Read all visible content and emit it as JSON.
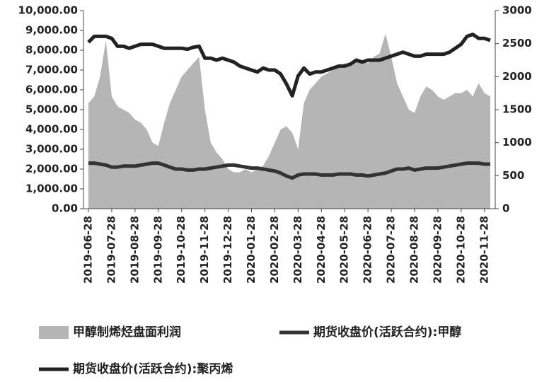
{
  "chart_data": {
    "type": "area-line",
    "categories": [
      "2019-06-28",
      null,
      null,
      null,
      "2019-07-28",
      null,
      null,
      null,
      "2019-08-28",
      null,
      null,
      null,
      "2019-09-28",
      null,
      null,
      null,
      "2019-10-28",
      null,
      null,
      null,
      "2019-11-28",
      null,
      null,
      null,
      "2019-12-28",
      null,
      null,
      null,
      "2020-01-28",
      null,
      null,
      null,
      "2020-02-28",
      null,
      null,
      null,
      "2020-03-28",
      null,
      null,
      null,
      "2020-04-28",
      null,
      null,
      null,
      "2020-05-28",
      null,
      null,
      null,
      "2020-06-28",
      null,
      null,
      null,
      "2020-07-28",
      null,
      null,
      null,
      "2020-08-28",
      null,
      null,
      null,
      "2020-09-28",
      null,
      null,
      null,
      "2020-10-28",
      null,
      null,
      null,
      "2020-11-28",
      null
    ],
    "series": [
      {
        "name": "甲醇制烯烃盘面利润",
        "type": "area",
        "axis": "y2",
        "color": "#b5b5b5",
        "values": [
          1600,
          1700,
          2000,
          2550,
          1700,
          1550,
          1500,
          1450,
          1350,
          1300,
          1200,
          1000,
          950,
          1300,
          1600,
          1800,
          2000,
          2100,
          2200,
          2300,
          1500,
          1000,
          850,
          750,
          600,
          550,
          550,
          600,
          550,
          600,
          650,
          800,
          1000,
          1200,
          1250,
          1150,
          900,
          1600,
          1800,
          1900,
          2000,
          2050,
          2100,
          2150,
          2200,
          2200,
          2250,
          2250,
          2200,
          2300,
          2350,
          2650,
          2300,
          1900,
          1700,
          1500,
          1450,
          1700,
          1850,
          1800,
          1700,
          1650,
          1700,
          1750,
          1750,
          1800,
          1700,
          1900,
          1750,
          1700
        ]
      },
      {
        "name": "期货收盘价(活跃合约):甲醇",
        "type": "line",
        "color": "#333333",
        "values": [
          2300,
          2300,
          2250,
          2200,
          2100,
          2100,
          2150,
          2150,
          2150,
          2200,
          2250,
          2300,
          2300,
          2200,
          2100,
          2000,
          2000,
          1950,
          1950,
          2000,
          2000,
          2050,
          2100,
          2150,
          2200,
          2200,
          2150,
          2100,
          2050,
          2050,
          2000,
          1950,
          1900,
          1800,
          1650,
          1550,
          1700,
          1750,
          1750,
          1750,
          1700,
          1700,
          1700,
          1750,
          1750,
          1750,
          1700,
          1700,
          1650,
          1700,
          1750,
          1800,
          1900,
          2000,
          2000,
          2050,
          1950,
          2000,
          2050,
          2050,
          2050,
          2100,
          2150,
          2200,
          2250,
          2300,
          2300,
          2300,
          2250,
          2250
        ]
      },
      {
        "name": "期货收盘价(活跃合约):聚丙烯",
        "type": "line",
        "color": "#222222",
        "values": [
          8400,
          8700,
          8700,
          8700,
          8600,
          8200,
          8200,
          8100,
          8200,
          8300,
          8300,
          8300,
          8200,
          8100,
          8100,
          8100,
          8100,
          8050,
          8150,
          8200,
          7600,
          7600,
          7500,
          7600,
          7500,
          7400,
          7200,
          7100,
          7000,
          6900,
          7100,
          7000,
          7000,
          6800,
          6300,
          5700,
          6700,
          7100,
          6800,
          6900,
          6900,
          7000,
          7100,
          7200,
          7200,
          7300,
          7500,
          7400,
          7500,
          7500,
          7500,
          7600,
          7700,
          7800,
          7900,
          7800,
          7700,
          7700,
          7800,
          7800,
          7800,
          7800,
          7900,
          8100,
          8300,
          8700,
          8800,
          8600,
          8600,
          8500
        ]
      }
    ],
    "ylim": [
      0,
      10000
    ],
    "yticks": [
      {
        "value": 0,
        "label": "0.00"
      },
      {
        "value": 1000,
        "label": "1,000.00"
      },
      {
        "value": 2000,
        "label": "2,000.00"
      },
      {
        "value": 3000,
        "label": "3,000.00"
      },
      {
        "value": 4000,
        "label": "4,000.00"
      },
      {
        "value": 5000,
        "label": "5,000.00"
      },
      {
        "value": 6000,
        "label": "6,000.00"
      },
      {
        "value": 7000,
        "label": "7,000.00"
      },
      {
        "value": 8000,
        "label": "8,000.00"
      },
      {
        "value": 9000,
        "label": "9,000.00"
      },
      {
        "value": 10000,
        "label": "10,000.00"
      }
    ],
    "y2lim": [
      0,
      3000
    ],
    "y2ticks": [
      0,
      500,
      1000,
      1500,
      2000,
      2500,
      3000
    ]
  }
}
